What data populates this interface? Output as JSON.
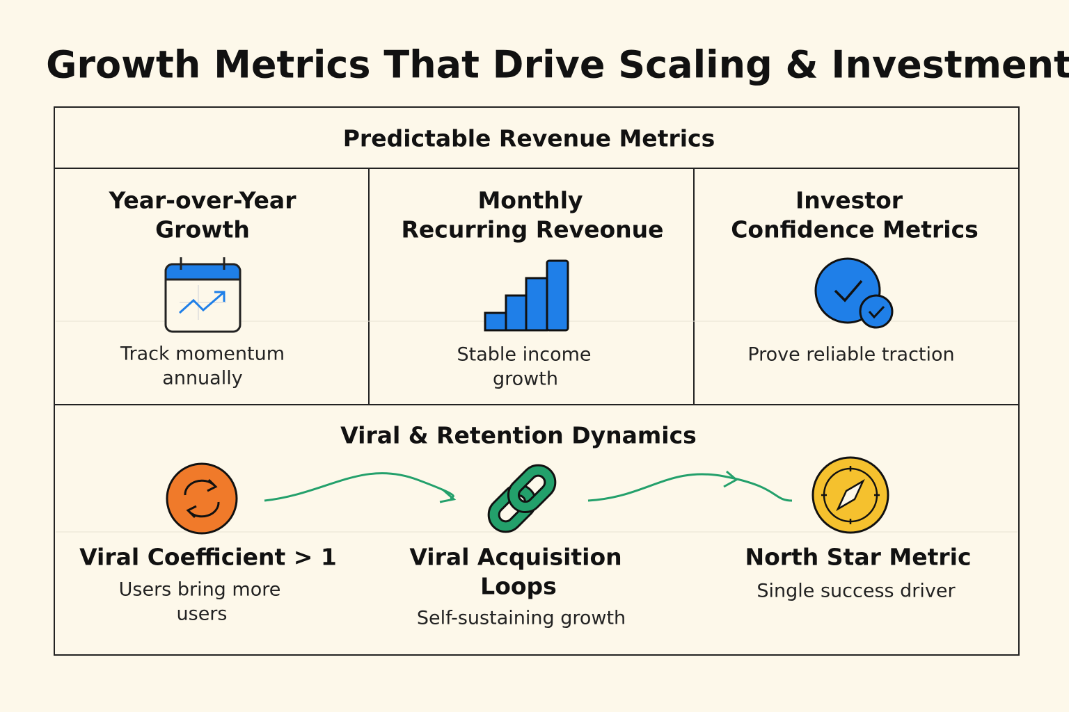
{
  "title": "Growth Metrics That Drive Scaling & Investment",
  "revenue_section": {
    "heading": "Predictable Revenue Metrics",
    "cards": [
      {
        "title_lines": [
          "Year-over-Year",
          "Growth"
        ],
        "description_lines": [
          "Track momentum",
          "annually"
        ]
      },
      {
        "title_lines": [
          "Monthly",
          "Recurring Reveonue"
        ],
        "description_lines": [
          "Stable income",
          "growth"
        ]
      },
      {
        "title_lines": [
          "Investor",
          "Confidence Metrics"
        ],
        "description_lines": [
          "Prove reliable traction"
        ]
      }
    ]
  },
  "viral_section": {
    "heading": "Viral & Retention Dynamics",
    "items": [
      {
        "title_lines": [
          "Viral Coefficient > 1"
        ],
        "description_lines": [
          "Users bring more",
          "users"
        ]
      },
      {
        "title_lines": [
          "Viral Acquisition",
          "Loops"
        ],
        "description_lines": [
          "Self-sustaining growth"
        ]
      },
      {
        "title_lines": [
          "North Star Metric"
        ],
        "description_lines": [
          "Single success driver"
        ]
      }
    ]
  }
}
